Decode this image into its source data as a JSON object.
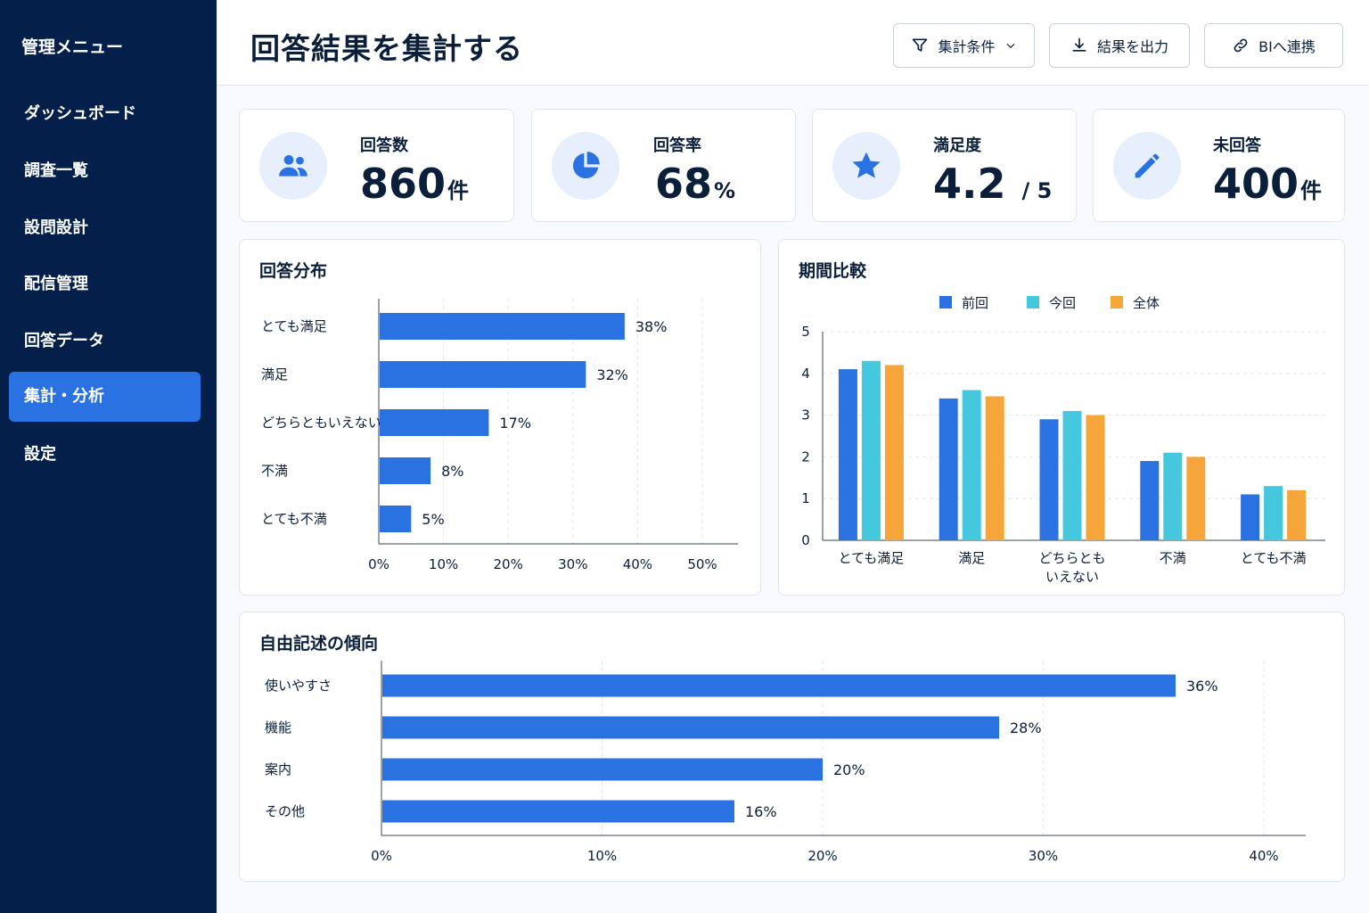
{
  "sidebar": {
    "title": "管理メニュー",
    "items": [
      {
        "label": "ダッシュボード",
        "active": false
      },
      {
        "label": "調査一覧",
        "active": false
      },
      {
        "label": "設問設計",
        "active": false
      },
      {
        "label": "配信管理",
        "active": false
      },
      {
        "label": "回答データ",
        "active": false
      },
      {
        "label": "集計・分析",
        "active": true
      },
      {
        "label": "設定",
        "active": false
      }
    ]
  },
  "header": {
    "title": "回答結果を集計する",
    "buttons": {
      "filter": "集計条件",
      "export": "結果を出力",
      "bi": "BIへ連携"
    }
  },
  "kpis": [
    {
      "label": "回答数",
      "value": "860",
      "unit": "件",
      "icon": "users-icon"
    },
    {
      "label": "回答率",
      "value": "68",
      "unit": "%",
      "icon": "pie-chart-icon"
    },
    {
      "label": "満足度",
      "value": "4.2",
      "unit": "/ 5",
      "icon": "star-icon"
    },
    {
      "label": "未回答",
      "value": "400",
      "unit": "件",
      "icon": "pencil-icon"
    }
  ],
  "colors": {
    "blue": "#2a72e1",
    "cyan": "#45c8de",
    "orange": "#f6a53a",
    "sidebar": "#04204a"
  },
  "chart_data": [
    {
      "type": "bar",
      "orientation": "horizontal",
      "title": "回答分布",
      "categories": [
        "とても満足",
        "満足",
        "どちらともいえない",
        "不満",
        "とても不満"
      ],
      "values": [
        38,
        32,
        17,
        8,
        5
      ],
      "value_labels": [
        "38%",
        "32%",
        "17%",
        "8%",
        "5%"
      ],
      "xticks": [
        "0%",
        "10%",
        "20%",
        "30%",
        "40%",
        "50%"
      ],
      "xlim": [
        0,
        50
      ],
      "grid": true
    },
    {
      "type": "bar",
      "title": "期間比較",
      "categories": [
        "とても満足",
        "満足",
        "どちらとも|いえない",
        "不満",
        "とても不満"
      ],
      "series": [
        {
          "name": "前回",
          "values": [
            4.1,
            3.4,
            2.9,
            1.9,
            1.1
          ]
        },
        {
          "name": "今回",
          "values": [
            4.3,
            3.6,
            3.1,
            2.1,
            1.3
          ]
        },
        {
          "name": "全体",
          "values": [
            4.2,
            3.45,
            3.0,
            2.0,
            1.2
          ]
        }
      ],
      "yticks": [
        "0",
        "1",
        "2",
        "3",
        "4",
        "5"
      ],
      "ylim": [
        0,
        5
      ],
      "legend": "top-center",
      "grid": true
    },
    {
      "type": "bar",
      "orientation": "horizontal",
      "title": "自由記述の傾向",
      "categories": [
        "使いやすさ",
        "機能",
        "案内",
        "その他"
      ],
      "values": [
        36,
        28,
        20,
        16
      ],
      "value_labels": [
        "36%",
        "28%",
        "20%",
        "16%"
      ],
      "xticks": [
        "0%",
        "10%",
        "20%",
        "30%",
        "40%"
      ],
      "xlim": [
        0,
        40
      ],
      "grid": true
    }
  ]
}
